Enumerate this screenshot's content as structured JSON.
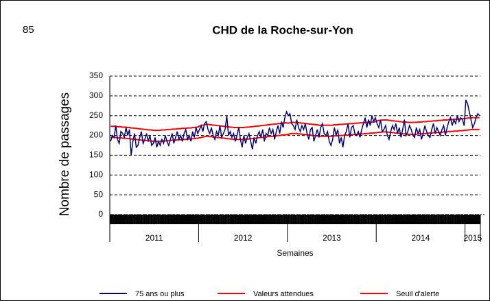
{
  "page_number": "85",
  "chart_data": {
    "type": "line",
    "title": "CHD de la Roche-sur-Yon",
    "y_label": "Nombre de passages",
    "x_label": "Semaines",
    "categories": [
      "2011",
      null,
      null,
      null,
      null,
      null,
      null,
      null,
      null,
      null,
      null,
      null,
      null,
      null,
      null,
      null,
      null,
      null,
      null,
      null,
      null,
      null,
      null,
      null,
      null,
      null,
      null,
      null,
      null,
      null,
      null,
      null,
      null,
      null,
      null,
      null,
      null,
      null,
      null,
      null,
      null,
      null,
      null,
      null,
      null,
      null,
      null,
      null,
      null,
      null,
      null,
      null,
      "2012",
      null,
      null,
      null,
      null,
      null,
      null,
      null,
      null,
      null,
      null,
      null,
      null,
      null,
      null,
      null,
      null,
      null,
      null,
      null,
      null,
      null,
      null,
      null,
      null,
      null,
      null,
      null,
      null,
      null,
      null,
      null,
      null,
      null,
      null,
      null,
      null,
      null,
      null,
      null,
      null,
      null,
      null,
      null,
      null,
      null,
      null,
      null,
      null,
      null,
      null,
      null,
      "2013",
      null,
      null,
      null,
      null,
      null,
      null,
      null,
      null,
      null,
      null,
      null,
      null,
      null,
      null,
      null,
      null,
      null,
      null,
      null,
      null,
      null,
      null,
      null,
      null,
      null,
      null,
      null,
      null,
      null,
      null,
      null,
      null,
      null,
      null,
      null,
      null,
      null,
      null,
      null,
      null,
      null,
      null,
      null,
      null,
      null,
      null,
      null,
      null,
      null,
      null,
      null,
      "2014",
      null,
      null,
      null,
      null,
      null,
      null,
      null,
      null,
      null,
      null,
      null,
      null,
      null,
      null,
      null,
      null,
      null,
      null,
      null,
      null,
      null,
      null,
      null,
      null,
      null,
      null,
      null,
      null,
      null,
      null,
      null,
      null,
      null,
      null,
      null,
      null,
      null,
      null,
      null,
      null,
      null,
      null,
      null,
      null,
      null,
      null,
      null,
      null,
      null,
      null,
      null,
      "2015",
      null,
      null,
      null,
      null,
      null,
      null,
      null,
      null
    ],
    "series": [
      {
        "name": "75 ans ou plus",
        "color": "#000080",
        "values": [
          185,
          200,
          195,
          225,
          190,
          180,
          210,
          205,
          195,
          220,
          200,
          215,
          150,
          185,
          205,
          170,
          175,
          195,
          210,
          180,
          190,
          205,
          185,
          200,
          175,
          180,
          195,
          170,
          185,
          175,
          190,
          180,
          200,
          185,
          175,
          190,
          205,
          180,
          195,
          210,
          190,
          200,
          185,
          205,
          215,
          190,
          200,
          185,
          210,
          195,
          220,
          205,
          215,
          225,
          210,
          230,
          235,
          215,
          205,
          220,
          200,
          190,
          210,
          200,
          225,
          195,
          205,
          215,
          250,
          200,
          210,
          195,
          205,
          185,
          200,
          220,
          190,
          170,
          200,
          180,
          195,
          205,
          185,
          165,
          195,
          180,
          200,
          210,
          195,
          215,
          185,
          205,
          200,
          220,
          205,
          215,
          190,
          210,
          225,
          205,
          235,
          220,
          245,
          260,
          250,
          255,
          230,
          225,
          215,
          240,
          220,
          210,
          225,
          215,
          230,
          205,
          190,
          215,
          220,
          185,
          200,
          215,
          195,
          220,
          230,
          205,
          200,
          210,
          185,
          175,
          190,
          220,
          200,
          215,
          180,
          195,
          170,
          200,
          210,
          230,
          195,
          220,
          225,
          205,
          200,
          210,
          195,
          215,
          230,
          245,
          220,
          240,
          225,
          250,
          235,
          245,
          230,
          220,
          240,
          210,
          215,
          225,
          200,
          190,
          210,
          225,
          215,
          230,
          205,
          220,
          195,
          215,
          240,
          200,
          210,
          225,
          215,
          200,
          195,
          220,
          205,
          215,
          190,
          205,
          225,
          210,
          200,
          195,
          215,
          230,
          205,
          220,
          210,
          200,
          215,
          225,
          200,
          220,
          235,
          245,
          225,
          240,
          230,
          250,
          235,
          245,
          240,
          225,
          290,
          280,
          260,
          240,
          220,
          230,
          245,
          255,
          250
        ]
      },
      {
        "name": "Valeurs attendues",
        "color": "#ff0000",
        "values": [
          195,
          195,
          195,
          195,
          194,
          194,
          194,
          193,
          193,
          193,
          192,
          192,
          191,
          191,
          190,
          190,
          189,
          189,
          188,
          188,
          187,
          187,
          186,
          186,
          186,
          185,
          185,
          185,
          185,
          185,
          186,
          186,
          186,
          187,
          187,
          187,
          188,
          188,
          188,
          189,
          189,
          189,
          190,
          190,
          190,
          191,
          191,
          191,
          192,
          192,
          193,
          193,
          194,
          195,
          196,
          197,
          198,
          198,
          197,
          197,
          196,
          196,
          195,
          195,
          194,
          194,
          193,
          193,
          192,
          192,
          191,
          191,
          190,
          190,
          190,
          190,
          190,
          190,
          190,
          191,
          191,
          191,
          192,
          192,
          193,
          193,
          194,
          194,
          195,
          195,
          196,
          196,
          197,
          197,
          198,
          198,
          199,
          199,
          200,
          200,
          201,
          201,
          202,
          202,
          203,
          204,
          205,
          205,
          205,
          205,
          204,
          204,
          203,
          203,
          202,
          202,
          201,
          201,
          200,
          200,
          199,
          199,
          198,
          198,
          198,
          198,
          198,
          198,
          198,
          198,
          198,
          199,
          199,
          199,
          200,
          200,
          200,
          201,
          201,
          201,
          202,
          202,
          202,
          203,
          203,
          203,
          204,
          204,
          204,
          205,
          205,
          205,
          206,
          206,
          206,
          207,
          207,
          208,
          208,
          209,
          209,
          209,
          209,
          208,
          208,
          207,
          207,
          206,
          206,
          205,
          205,
          204,
          204,
          204,
          203,
          203,
          203,
          203,
          203,
          203,
          204,
          204,
          204,
          205,
          205,
          205,
          206,
          206,
          206,
          207,
          207,
          207,
          208,
          208,
          208,
          209,
          209,
          209,
          210,
          210,
          210,
          211,
          211,
          211,
          212,
          212,
          212,
          213,
          213,
          214,
          214,
          215,
          215,
          215,
          215,
          215,
          215
        ]
      },
      {
        "name": "Seuil d'alerte",
        "color": "#ff0000",
        "values": [
          223,
          223,
          223,
          223,
          222,
          222,
          222,
          221,
          221,
          221,
          220,
          220,
          219,
          219,
          218,
          218,
          217,
          217,
          216,
          216,
          215,
          215,
          214,
          214,
          214,
          213,
          213,
          213,
          213,
          213,
          214,
          214,
          214,
          215,
          215,
          215,
          216,
          216,
          216,
          217,
          217,
          217,
          218,
          218,
          218,
          219,
          219,
          219,
          220,
          220,
          221,
          221,
          224,
          225,
          226,
          227,
          228,
          228,
          227,
          227,
          226,
          226,
          225,
          225,
          224,
          224,
          223,
          223,
          222,
          222,
          221,
          221,
          220,
          220,
          220,
          220,
          220,
          220,
          220,
          221,
          221,
          221,
          222,
          222,
          223,
          223,
          224,
          224,
          225,
          225,
          226,
          226,
          227,
          227,
          228,
          228,
          229,
          229,
          230,
          230,
          231,
          231,
          232,
          232,
          231,
          232,
          233,
          233,
          233,
          233,
          232,
          232,
          231,
          231,
          230,
          230,
          229,
          229,
          228,
          228,
          227,
          227,
          226,
          226,
          226,
          226,
          226,
          226,
          226,
          226,
          226,
          227,
          227,
          227,
          228,
          228,
          228,
          229,
          229,
          229,
          230,
          230,
          230,
          231,
          231,
          231,
          232,
          232,
          232,
          233,
          233,
          233,
          234,
          234,
          234,
          235,
          237,
          238,
          238,
          239,
          239,
          239,
          239,
          238,
          238,
          237,
          237,
          236,
          236,
          235,
          235,
          234,
          234,
          234,
          233,
          233,
          233,
          233,
          233,
          233,
          234,
          234,
          234,
          235,
          235,
          235,
          236,
          236,
          236,
          237,
          237,
          237,
          238,
          238,
          238,
          239,
          239,
          239,
          240,
          240,
          240,
          241,
          241,
          241,
          242,
          242,
          242,
          243,
          243,
          244,
          244,
          245,
          245,
          245,
          245,
          245,
          245
        ]
      }
    ],
    "ylim": [
      0,
      350
    ],
    "yticks": [
      0,
      50,
      100,
      150,
      200,
      250,
      300,
      350
    ],
    "grid": true
  }
}
